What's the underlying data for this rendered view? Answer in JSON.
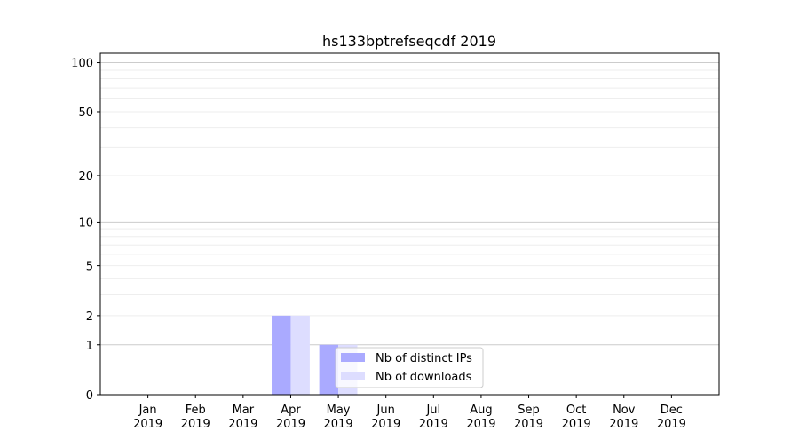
{
  "chart_data": {
    "type": "bar",
    "title": "hs133bptrefseqcdf 2019",
    "xlabel": "",
    "ylabel": "",
    "y_scale": "log(1+y)",
    "ylim": [
      0,
      114
    ],
    "y_ticks": [
      0,
      1,
      2,
      5,
      10,
      20,
      50,
      100
    ],
    "grid": true,
    "legend_placement": "lower-center",
    "categories": [
      {
        "month": "Jan",
        "year": "2019"
      },
      {
        "month": "Feb",
        "year": "2019"
      },
      {
        "month": "Mar",
        "year": "2019"
      },
      {
        "month": "Apr",
        "year": "2019"
      },
      {
        "month": "May",
        "year": "2019"
      },
      {
        "month": "Jun",
        "year": "2019"
      },
      {
        "month": "Jul",
        "year": "2019"
      },
      {
        "month": "Aug",
        "year": "2019"
      },
      {
        "month": "Sep",
        "year": "2019"
      },
      {
        "month": "Oct",
        "year": "2019"
      },
      {
        "month": "Nov",
        "year": "2019"
      },
      {
        "month": "Dec",
        "year": "2019"
      }
    ],
    "series": [
      {
        "name": "Nb of distinct IPs",
        "color": "#aaaaff",
        "values": [
          0,
          0,
          0,
          2,
          1,
          0,
          0,
          0,
          0,
          0,
          0,
          0
        ]
      },
      {
        "name": "Nb of downloads",
        "color": "#ddddff",
        "values": [
          0,
          0,
          0,
          2,
          1,
          0,
          0,
          0,
          0,
          0,
          0,
          0
        ]
      }
    ]
  }
}
